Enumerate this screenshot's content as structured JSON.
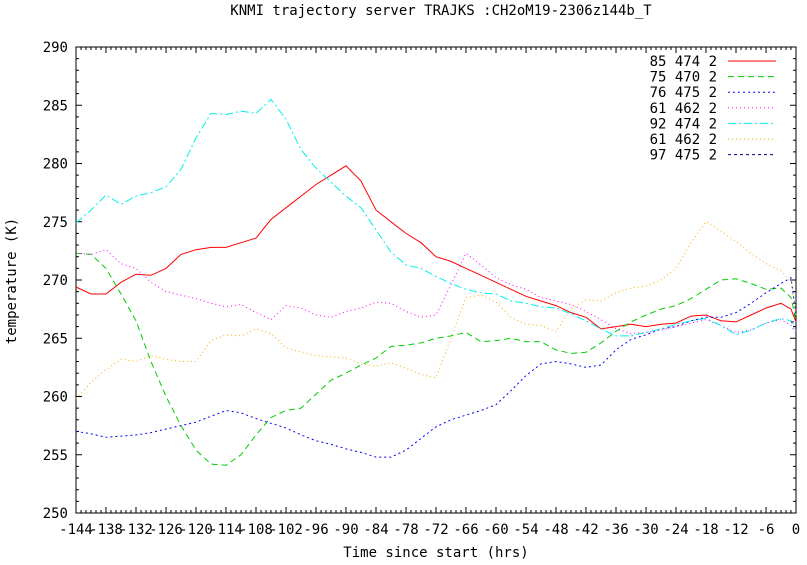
{
  "chart_data": {
    "type": "line",
    "title": "KNMI trajectory server TRAJKS :CH2oM19-2306z144b_T",
    "xlabel": "Time since start (hrs)",
    "ylabel": "temperature (K)",
    "xlim": [
      -144,
      0
    ],
    "ylim": [
      250,
      290
    ],
    "x_ticks": [
      -144,
      -138,
      -132,
      -126,
      -120,
      -114,
      -108,
      -102,
      -96,
      -90,
      -84,
      -78,
      -72,
      -66,
      -60,
      -54,
      -48,
      -42,
      -36,
      -30,
      -24,
      -18,
      -12,
      -6,
      0
    ],
    "x_tick_labels": [
      "-144",
      "-138",
      "-132",
      "-126",
      "-120",
      "-114",
      "-108",
      "-102",
      "-96",
      "-90",
      "-84",
      "-78",
      "-72",
      "-66",
      "-60",
      "-54",
      "-48",
      "-42",
      "-36",
      "-30",
      "-24",
      "-18",
      "-12",
      "-6",
      "0"
    ],
    "y_ticks": [
      250,
      255,
      260,
      265,
      270,
      275,
      280,
      285,
      290
    ],
    "y_tick_labels": [
      "250",
      "255",
      "260",
      "265",
      "270",
      "275",
      "280",
      "285",
      "290"
    ],
    "grid": false,
    "legend_position": "top-right",
    "series": [
      {
        "name": "85 474 2",
        "color": "#ff0000",
        "dash": "solid",
        "x": [
          -144,
          -141,
          -138,
          -135,
          -132,
          -129,
          -126,
          -123,
          -120,
          -117,
          -114,
          -111,
          -108,
          -105,
          -102,
          -99,
          -96,
          -93,
          -90,
          -87,
          -84,
          -81,
          -78,
          -75,
          -72,
          -69,
          -66,
          -63,
          -60,
          -57,
          -54,
          -51,
          -48,
          -45,
          -42,
          -39,
          -36,
          -33,
          -30,
          -27,
          -24,
          -21,
          -18,
          -15,
          -12,
          -9,
          -6,
          -3,
          -1,
          0
        ],
        "values": [
          269.4,
          268.8,
          268.8,
          269.8,
          270.5,
          270.4,
          271.0,
          272.2,
          272.6,
          272.8,
          272.8,
          273.2,
          273.6,
          275.2,
          276.2,
          277.2,
          278.2,
          279.0,
          279.8,
          278.5,
          276.0,
          275.0,
          274.0,
          273.2,
          272.0,
          271.6,
          271.0,
          270.4,
          269.8,
          269.2,
          268.6,
          268.2,
          267.8,
          267.2,
          266.8,
          265.8,
          266.0,
          266.2,
          266.0,
          266.2,
          266.3,
          266.9,
          267.0,
          266.5,
          266.4,
          267.0,
          267.6,
          268.0,
          267.5,
          266.4
        ]
      },
      {
        "name": "75 470 2",
        "color": "#00cc00",
        "dash": "6,4",
        "x": [
          -144,
          -141,
          -138,
          -135,
          -132,
          -129,
          -126,
          -123,
          -120,
          -117,
          -114,
          -111,
          -108,
          -105,
          -102,
          -99,
          -96,
          -93,
          -90,
          -87,
          -84,
          -81,
          -78,
          -75,
          -72,
          -69,
          -66,
          -63,
          -60,
          -57,
          -54,
          -51,
          -48,
          -45,
          -42,
          -39,
          -36,
          -33,
          -30,
          -27,
          -24,
          -21,
          -18,
          -15,
          -12,
          -9,
          -6,
          -3,
          -1,
          0
        ],
        "values": [
          272.3,
          272.2,
          271.0,
          268.8,
          266.5,
          263.0,
          260.0,
          257.5,
          255.4,
          254.2,
          254.1,
          255.0,
          256.7,
          258.2,
          258.8,
          259.0,
          260.2,
          261.4,
          262.0,
          262.7,
          263.3,
          264.3,
          264.4,
          264.6,
          265.0,
          265.2,
          265.5,
          264.7,
          264.8,
          265.0,
          264.7,
          264.7,
          264.0,
          263.7,
          263.8,
          264.6,
          265.6,
          266.4,
          267.0,
          267.5,
          267.8,
          268.4,
          269.2,
          270.0,
          270.1,
          269.7,
          269.2,
          269.3,
          268.5,
          266.5
        ]
      },
      {
        "name": "76 475 2",
        "color": "#0000ff",
        "dash": "2,3",
        "x": [
          -144,
          -141,
          -138,
          -135,
          -132,
          -129,
          -126,
          -123,
          -120,
          -117,
          -114,
          -111,
          -108,
          -105,
          -102,
          -99,
          -96,
          -93,
          -90,
          -87,
          -84,
          -81,
          -78,
          -75,
          -72,
          -69,
          -66,
          -63,
          -60,
          -57,
          -54,
          -51,
          -48,
          -45,
          -42,
          -39,
          -36,
          -33,
          -30,
          -27,
          -24,
          -21,
          -18,
          -15,
          -12,
          -9,
          -6,
          -3,
          -1,
          0
        ],
        "values": [
          257.0,
          256.8,
          256.5,
          256.6,
          256.7,
          256.9,
          257.2,
          257.5,
          257.8,
          258.3,
          258.8,
          258.6,
          258.1,
          257.7,
          257.3,
          256.7,
          256.2,
          255.9,
          255.5,
          255.2,
          254.8,
          254.8,
          255.4,
          256.4,
          257.4,
          258.0,
          258.4,
          258.8,
          259.3,
          260.5,
          261.8,
          262.8,
          263.0,
          262.8,
          262.5,
          262.7,
          264.0,
          264.9,
          265.3,
          265.8,
          266.0,
          266.5,
          266.8,
          266.8,
          267.2,
          268.0,
          268.9,
          269.7,
          270.2,
          267.0
        ]
      },
      {
        "name": "61 462 2",
        "color": "#ff00ff",
        "dash": "1,3",
        "x": [
          -144,
          -141,
          -138,
          -135,
          -132,
          -129,
          -126,
          -123,
          -120,
          -117,
          -114,
          -111,
          -108,
          -105,
          -102,
          -99,
          -96,
          -93,
          -90,
          -87,
          -84,
          -81,
          -78,
          -75,
          -72,
          -69,
          -66,
          -63,
          -60,
          -57,
          -54,
          -51,
          -48,
          -45,
          -42,
          -39,
          -36,
          -33,
          -30,
          -27,
          -24,
          -21,
          -18,
          -15,
          -12,
          -9,
          -6,
          -3,
          -1,
          0
        ],
        "values": [
          272.3,
          272.2,
          272.6,
          271.4,
          271.0,
          269.8,
          269.0,
          268.7,
          268.4,
          268.0,
          267.7,
          267.9,
          267.2,
          266.6,
          267.8,
          267.6,
          267.0,
          266.8,
          267.3,
          267.6,
          268.1,
          268.0,
          267.3,
          266.8,
          267.0,
          269.6,
          272.3,
          271.3,
          270.2,
          269.6,
          269.2,
          268.5,
          268.2,
          267.9,
          267.3,
          266.6,
          265.8,
          265.4,
          265.5,
          265.7,
          266.0,
          266.3,
          266.6,
          266.1,
          265.5,
          265.7,
          266.3,
          266.6,
          266.1,
          265.4
        ]
      },
      {
        "name": "92 474 2",
        "color": "#00eeee",
        "dash": "8,3,2,3",
        "x": [
          -144,
          -141,
          -138,
          -135,
          -132,
          -129,
          -126,
          -123,
          -120,
          -117,
          -114,
          -111,
          -108,
          -105,
          -102,
          -99,
          -96,
          -93,
          -90,
          -87,
          -84,
          -81,
          -78,
          -75,
          -72,
          -69,
          -66,
          -63,
          -60,
          -57,
          -54,
          -51,
          -48,
          -45,
          -42,
          -39,
          -36,
          -33,
          -30,
          -27,
          -24,
          -21,
          -18,
          -15,
          -12,
          -9,
          -6,
          -3,
          -1,
          0
        ],
        "values": [
          274.9,
          276.0,
          277.3,
          276.5,
          277.2,
          277.5,
          278.0,
          279.5,
          282.2,
          284.3,
          284.2,
          284.5,
          284.3,
          285.5,
          283.8,
          281.2,
          279.6,
          278.4,
          277.2,
          276.2,
          274.3,
          272.4,
          271.3,
          271.0,
          270.3,
          269.7,
          269.2,
          268.9,
          268.8,
          268.2,
          268.0,
          267.7,
          267.6,
          267.1,
          266.5,
          265.8,
          265.2,
          265.2,
          265.5,
          265.8,
          266.2,
          266.5,
          266.7,
          266.1,
          265.3,
          265.7,
          266.3,
          266.7,
          266.5,
          265.5
        ]
      },
      {
        "name": "61 462 2",
        "color": "#ffaa00",
        "dash": "1,3",
        "x": [
          -144,
          -141,
          -138,
          -135,
          -132,
          -129,
          -126,
          -123,
          -120,
          -117,
          -114,
          -111,
          -108,
          -105,
          -102,
          -99,
          -96,
          -93,
          -90,
          -87,
          -84,
          -81,
          -78,
          -75,
          -72,
          -69,
          -66,
          -63,
          -60,
          -57,
          -54,
          -51,
          -48,
          -45,
          -42,
          -39,
          -36,
          -33,
          -30,
          -27,
          -24,
          -21,
          -18,
          -15,
          -12,
          -9,
          -6,
          -3,
          -1,
          0
        ],
        "values": [
          259.8,
          261.2,
          262.3,
          263.2,
          263.0,
          263.5,
          263.2,
          263.0,
          263.0,
          264.8,
          265.3,
          265.2,
          265.8,
          265.4,
          264.2,
          263.8,
          263.5,
          263.4,
          263.3,
          262.8,
          262.6,
          262.9,
          262.4,
          261.9,
          261.6,
          265.0,
          268.5,
          268.7,
          268.1,
          266.8,
          266.2,
          266.1,
          265.6,
          267.5,
          268.3,
          268.2,
          268.9,
          269.3,
          269.5,
          270.0,
          271.0,
          273.2,
          275.0,
          274.2,
          273.3,
          272.3,
          271.4,
          270.8,
          269.8,
          267.0
        ]
      },
      {
        "name": "97 475 2",
        "color": "#000080",
        "dash": "3,3",
        "x": [
          -1,
          0
        ],
        "values": [
          266.4,
          266.4
        ]
      }
    ]
  }
}
